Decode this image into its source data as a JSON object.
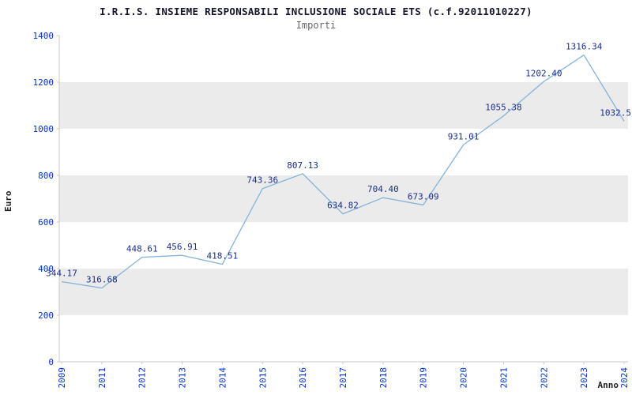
{
  "header": {
    "title": "I.R.I.S. INSIEME RESPONSABILI INCLUSIONE SOCIALE ETS (c.f.92011010227)",
    "subtitle": "Importi"
  },
  "chart_data": {
    "type": "line",
    "title": "I.R.I.S. INSIEME RESPONSABILI INCLUSIONE SOCIALE ETS (c.f.92011010227)",
    "subtitle": "Importi",
    "xlabel": "Anno",
    "ylabel": "Euro",
    "ylim": [
      0,
      1400
    ],
    "ytick_step": 200,
    "ytick_labels": [
      "0",
      "200",
      "400",
      "600",
      "800",
      "1000",
      "1200",
      "1400"
    ],
    "categories": [
      "2009",
      "2011",
      "2012",
      "2013",
      "2014",
      "2015",
      "2016",
      "2017",
      "2018",
      "2019",
      "2020",
      "2021",
      "2022",
      "2023",
      "2024"
    ],
    "values": [
      344.17,
      316.68,
      448.61,
      456.91,
      418.51,
      743.36,
      807.13,
      634.82,
      704.4,
      673.09,
      931.01,
      1055.38,
      1202.4,
      1316.34,
      1032.5
    ],
    "labels": [
      "344.17",
      "316.68",
      "448.61",
      "456.91",
      "418.51",
      "743.36",
      "807.13",
      "634.82",
      "704.40",
      "673.09",
      "931.01",
      "1055.38",
      "1202.40",
      "1316.34",
      "1032.5"
    ],
    "legend": "none",
    "grid": "alternating horizontal gray bands every 200 units",
    "colors": {
      "line": "#85b3d9",
      "value_label": "#1b2f8a",
      "tick_label": "#0033cc",
      "band": "#ebebeb",
      "axis": "#c8c8c8",
      "title": "#14142a",
      "subtitle": "#666666"
    }
  }
}
